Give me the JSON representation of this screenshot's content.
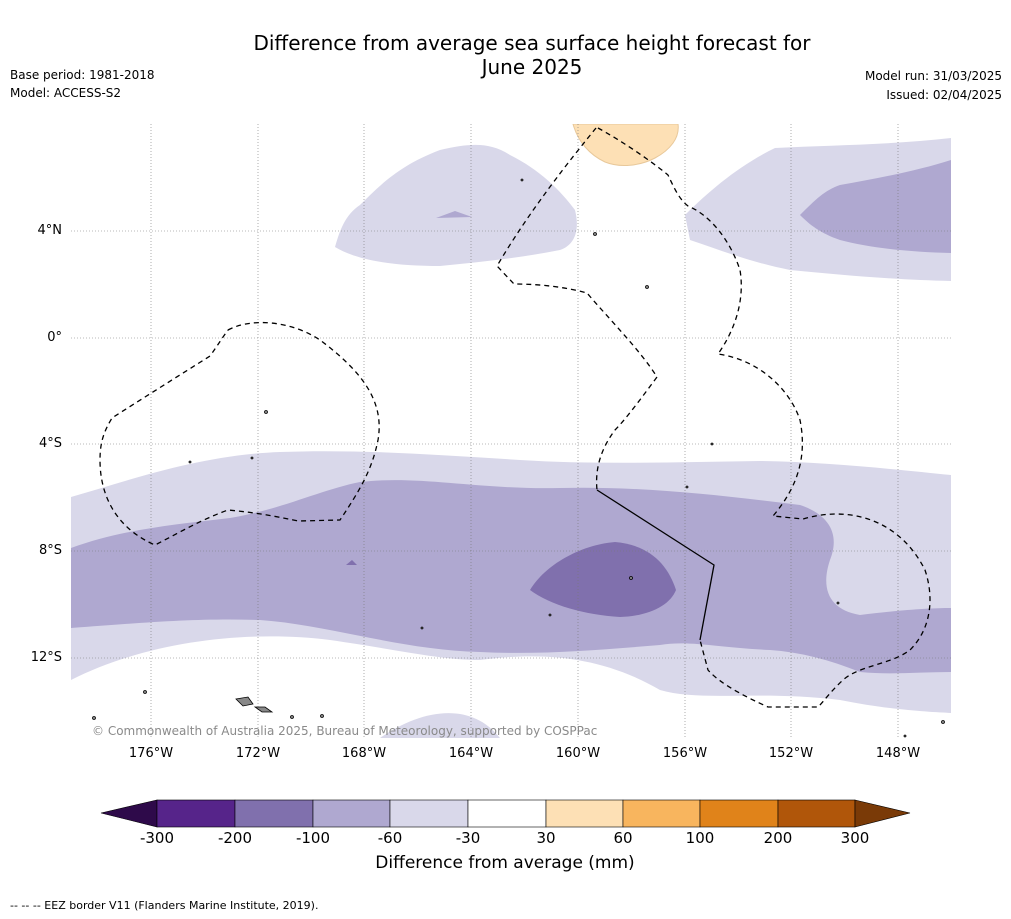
{
  "header": {
    "title_line1": "Difference from average sea surface height forecast for",
    "title_line2": "June 2025",
    "base_period": "Base period: 1981-2018",
    "model": "Model: ACCESS-S2",
    "model_run": "Model run: 31/03/2025",
    "issued": "Issued: 02/04/2025"
  },
  "map": {
    "lat_labels": [
      "4°N",
      "0°",
      "4°S",
      "8°S",
      "12°S"
    ],
    "lon_labels": [
      "176°W",
      "172°W",
      "168°W",
      "164°W",
      "160°W",
      "156°W",
      "152°W",
      "148°W"
    ],
    "copyright": "© Commonwealth of Australia 2025, Bureau of Meteorology, supported by COSPPac"
  },
  "colorbar": {
    "ticks": [
      "-300",
      "-200",
      "-100",
      "-60",
      "-30",
      "30",
      "60",
      "100",
      "200",
      "300"
    ],
    "colors": [
      "#2e0a4a",
      "#56248a",
      "#8070ad",
      "#afa8d0",
      "#d9d8ea",
      "#ffffff",
      "#fde0b5",
      "#f8b55e",
      "#e0831a",
      "#b0560a",
      "#7a3a07"
    ],
    "label": "Difference from average (mm)"
  },
  "footnote": "--  --  -- EEZ border V11 (Flanders Marine Institute, 2019)."
}
